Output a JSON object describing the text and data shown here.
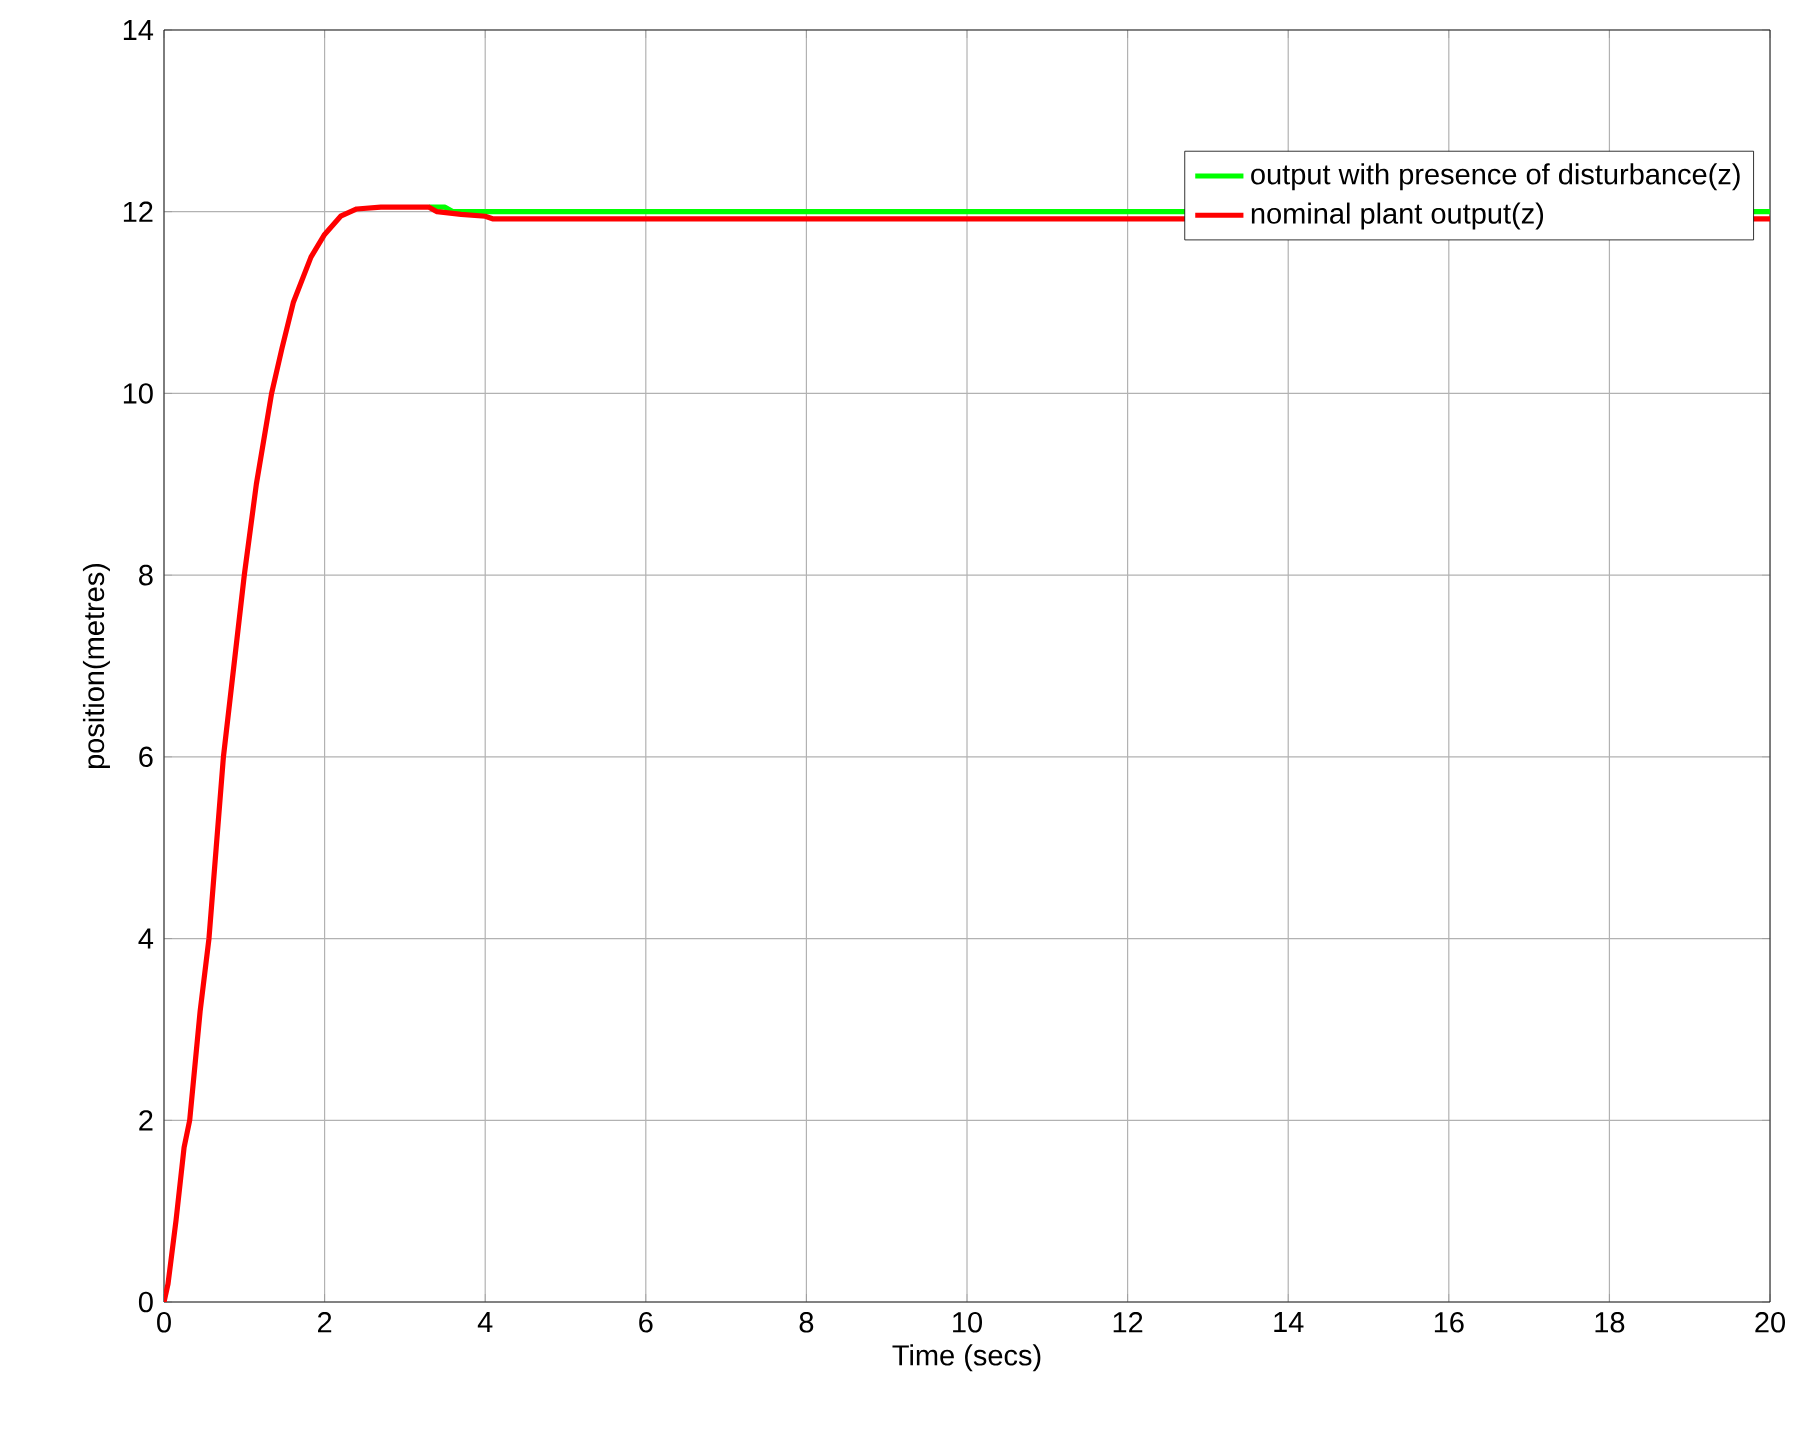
{
  "chart_data": {
    "type": "line",
    "xlabel": "Time (secs)",
    "ylabel": "position(metres)",
    "xlim": [
      0,
      20
    ],
    "ylim": [
      0,
      14
    ],
    "xticks": [
      0,
      2,
      4,
      6,
      8,
      10,
      12,
      14,
      16,
      18,
      20
    ],
    "yticks": [
      0,
      2,
      4,
      6,
      8,
      10,
      12,
      14
    ],
    "grid": true,
    "legend": "top right",
    "line_style": "solid",
    "series": [
      {
        "name": "output with presence of disturbance(z)",
        "color": "#00ff00",
        "x": [
          3.3,
          3.5,
          3.6,
          20
        ],
        "values": [
          12.05,
          12.05,
          12.0,
          12.0
        ]
      },
      {
        "name": "nominal plant output(z)",
        "color": "#ff0000",
        "x": [
          0,
          0.05,
          0.15,
          0.25,
          0.32,
          0.45,
          0.56,
          0.65,
          0.74,
          0.87,
          1.0,
          1.15,
          1.34,
          1.47,
          1.61,
          1.83,
          2.0,
          2.2,
          2.4,
          2.7,
          3.3,
          3.4,
          3.7,
          4.0,
          4.1,
          20
        ],
        "values": [
          0,
          0.2,
          0.9,
          1.7,
          2.0,
          3.2,
          4.0,
          5.0,
          6.0,
          7.0,
          8.0,
          9.0,
          10.0,
          10.5,
          11.0,
          11.5,
          11.75,
          11.95,
          12.03,
          12.05,
          12.05,
          12.0,
          11.97,
          11.95,
          11.92,
          11.92
        ]
      }
    ]
  }
}
